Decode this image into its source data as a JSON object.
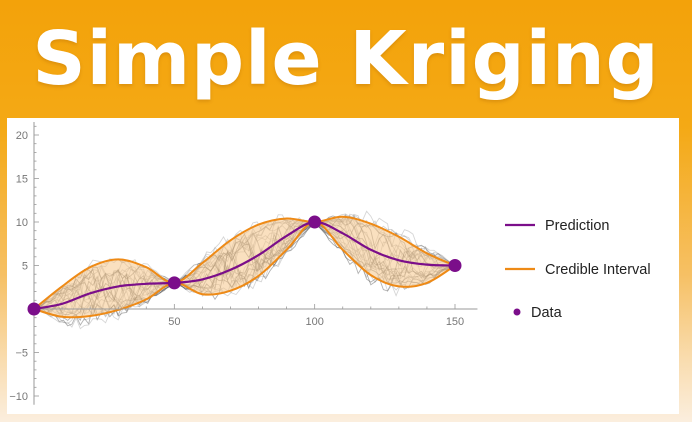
{
  "banner": {
    "title": "Simple Kriging"
  },
  "colors": {
    "prediction": "#7b0e8a",
    "interval": "#ee8a16",
    "interval_fill": "#f6c78b",
    "data": "#7b0e8a",
    "simulations": "#8a8a8a"
  },
  "chart_data": {
    "type": "line",
    "title": "",
    "xlabel": "",
    "ylabel": "",
    "xlim": [
      -2,
      158
    ],
    "ylim": [
      -11,
      21.5
    ],
    "x_ticks": [
      50,
      100,
      150
    ],
    "y_ticks": [
      -10,
      -5,
      5,
      10,
      15,
      20
    ],
    "grid": false,
    "legend_position": "right",
    "data_points": {
      "x": [
        0,
        50,
        100,
        150
      ],
      "y": [
        0,
        3,
        10,
        5
      ]
    },
    "series": [
      {
        "name": "Prediction",
        "kind": "line",
        "x": [
          0,
          10,
          20,
          30,
          40,
          50,
          60,
          70,
          80,
          90,
          100,
          110,
          120,
          130,
          140,
          150
        ],
        "y": [
          0,
          0.6,
          1.8,
          2.6,
          2.9,
          3,
          3.4,
          4.5,
          6.2,
          8.4,
          10,
          8.7,
          6.8,
          5.6,
          5.1,
          5
        ]
      },
      {
        "name": "Credible Interval",
        "kind": "band",
        "x": [
          0,
          10,
          20,
          30,
          40,
          50,
          60,
          70,
          80,
          90,
          100,
          110,
          120,
          130,
          140,
          150
        ],
        "upper": [
          0,
          2.6,
          4.8,
          5.7,
          4.8,
          3,
          5.3,
          7.9,
          9.7,
          10.4,
          10,
          10.6,
          9.8,
          8.3,
          6.4,
          5
        ],
        "lower": [
          0,
          -0.9,
          -0.8,
          -0.1,
          1.1,
          3,
          1.7,
          2.1,
          3.8,
          6.8,
          10,
          6.8,
          3.9,
          2.6,
          3,
          5
        ]
      },
      {
        "name": "Data",
        "kind": "points",
        "x": [
          0,
          50,
          100,
          150
        ],
        "y": [
          0,
          3,
          10,
          5
        ]
      }
    ]
  },
  "legend": {
    "items": [
      {
        "label": "Prediction"
      },
      {
        "label": "Credible Interval"
      },
      {
        "label": "Data"
      }
    ]
  }
}
